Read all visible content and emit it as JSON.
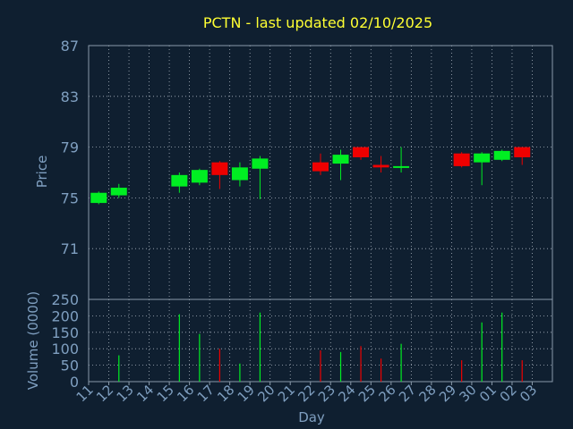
{
  "title": "PCTN - last updated 02/10/2025",
  "colors": {
    "background": "#0f1f30",
    "title": "#ffff33",
    "axis_text": "#7f9fc0",
    "frame": "#8a9aaa",
    "grid": "#aab4bf",
    "up": "#00ee22",
    "down": "#ee0000"
  },
  "chart_data": [
    {
      "type": "candlestick",
      "ylabel": "Price",
      "ylim": [
        67,
        87
      ],
      "yticks": [
        71,
        75,
        79,
        83,
        87
      ],
      "x_labels": [
        "11",
        "12",
        "13",
        "14",
        "15",
        "16",
        "17",
        "18",
        "19",
        "20",
        "21",
        "22",
        "23",
        "24",
        "25",
        "26",
        "27",
        "28",
        "29",
        "30",
        "01",
        "02",
        "03"
      ],
      "candles": [
        {
          "day": "11",
          "open": 74.6,
          "close": 75.4,
          "high": 75.5,
          "low": 74.5
        },
        {
          "day": "12",
          "open": 75.2,
          "close": 75.8,
          "high": 76.1,
          "low": 75.0
        },
        {
          "day": "15",
          "open": 75.9,
          "close": 76.8,
          "high": 77.0,
          "low": 75.4
        },
        {
          "day": "16",
          "open": 76.2,
          "close": 77.2,
          "high": 77.3,
          "low": 76.0
        },
        {
          "day": "17",
          "open": 77.8,
          "close": 76.8,
          "high": 77.9,
          "low": 75.7
        },
        {
          "day": "18",
          "open": 76.4,
          "close": 77.4,
          "high": 77.8,
          "low": 75.9
        },
        {
          "day": "19",
          "open": 77.3,
          "close": 78.1,
          "high": 78.3,
          "low": 74.9
        },
        {
          "day": "22",
          "open": 77.8,
          "close": 77.1,
          "high": 78.5,
          "low": 76.8
        },
        {
          "day": "23",
          "open": 77.7,
          "close": 78.4,
          "high": 78.8,
          "low": 76.4
        },
        {
          "day": "24",
          "open": 79.0,
          "close": 78.2,
          "high": 79.0,
          "low": 78.0
        },
        {
          "day": "25",
          "open": 77.6,
          "close": 77.4,
          "high": 78.3,
          "low": 77.0
        },
        {
          "day": "26",
          "open": 77.4,
          "close": 77.5,
          "high": 79.0,
          "low": 77.0
        },
        {
          "day": "29",
          "open": 78.5,
          "close": 77.5,
          "high": 78.6,
          "low": 77.4
        },
        {
          "day": "30",
          "open": 77.8,
          "close": 78.5,
          "high": 78.6,
          "low": 76.0
        },
        {
          "day": "01",
          "open": 78.0,
          "close": 78.7,
          "high": 78.8,
          "low": 77.9
        },
        {
          "day": "02",
          "open": 79.0,
          "close": 78.2,
          "high": 79.0,
          "low": 77.6
        }
      ]
    },
    {
      "type": "bar",
      "ylabel": "Volume (0000)",
      "xlabel": "Day",
      "ylim": [
        0,
        250
      ],
      "yticks": [
        0,
        50,
        100,
        150,
        200,
        250
      ],
      "x_labels": [
        "11",
        "12",
        "13",
        "14",
        "15",
        "16",
        "17",
        "18",
        "19",
        "20",
        "21",
        "22",
        "23",
        "24",
        "25",
        "26",
        "27",
        "28",
        "29",
        "30",
        "01",
        "02",
        "03"
      ],
      "bars": [
        {
          "day": "12",
          "value": 80,
          "dir": "up"
        },
        {
          "day": "15",
          "value": 205,
          "dir": "up"
        },
        {
          "day": "16",
          "value": 145,
          "dir": "up"
        },
        {
          "day": "17",
          "value": 100,
          "dir": "down"
        },
        {
          "day": "18",
          "value": 55,
          "dir": "up"
        },
        {
          "day": "19",
          "value": 210,
          "dir": "up"
        },
        {
          "day": "22",
          "value": 95,
          "dir": "down"
        },
        {
          "day": "23",
          "value": 90,
          "dir": "up"
        },
        {
          "day": "24",
          "value": 108,
          "dir": "down"
        },
        {
          "day": "25",
          "value": 70,
          "dir": "down"
        },
        {
          "day": "26",
          "value": 115,
          "dir": "up"
        },
        {
          "day": "29",
          "value": 65,
          "dir": "down"
        },
        {
          "day": "30",
          "value": 180,
          "dir": "up"
        },
        {
          "day": "01",
          "value": 210,
          "dir": "up"
        },
        {
          "day": "02",
          "value": 65,
          "dir": "down"
        }
      ]
    }
  ]
}
